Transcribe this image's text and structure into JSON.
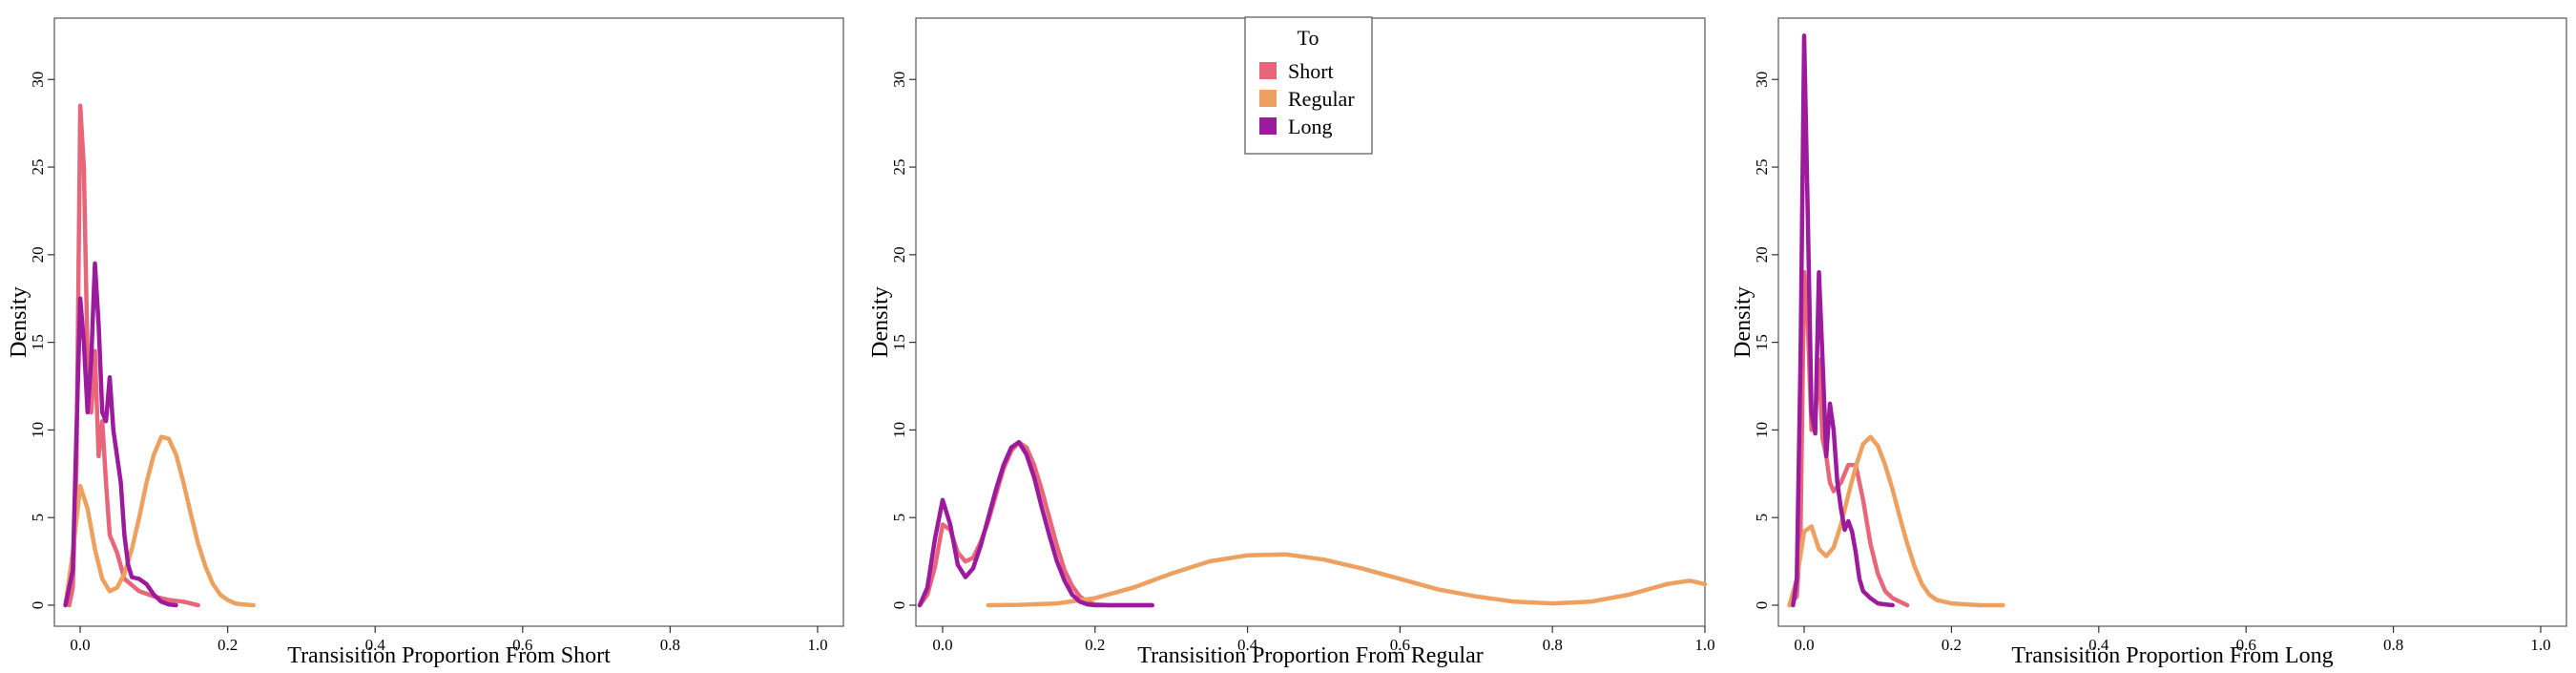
{
  "colors": {
    "Short": "#e8667a",
    "Regular": "#eda05f",
    "Long": "#9b1b9c"
  },
  "legend": {
    "title": "To",
    "entries": [
      "Short",
      "Regular",
      "Long"
    ]
  },
  "chart_data": [
    {
      "type": "line",
      "xlabel": "Transisition Proportion From Short",
      "ylabel": "Density",
      "xlim": [
        -0.035,
        1.035
      ],
      "ylim": [
        -1.2,
        33.5
      ],
      "xticks": [
        0.0,
        0.2,
        0.4,
        0.6,
        0.8,
        1.0
      ],
      "yticks": [
        0,
        5,
        10,
        15,
        20,
        25,
        30
      ],
      "series": [
        {
          "name": "Short",
          "x": [
            -0.015,
            -0.01,
            -0.005,
            0,
            0.005,
            0.01,
            0.015,
            0.02,
            0.025,
            0.03,
            0.035,
            0.04,
            0.05,
            0.06,
            0.08,
            0.1,
            0.12,
            0.14,
            0.16
          ],
          "y": [
            0,
            1,
            8,
            28.5,
            25,
            14,
            11,
            14.5,
            8.5,
            10.5,
            7,
            4,
            3,
            1.5,
            0.8,
            0.5,
            0.3,
            0.2,
            0
          ]
        },
        {
          "name": "Regular",
          "x": [
            -0.02,
            -0.01,
            0,
            0.01,
            0.02,
            0.03,
            0.04,
            0.05,
            0.06,
            0.07,
            0.08,
            0.09,
            0.1,
            0.11,
            0.12,
            0.13,
            0.14,
            0.15,
            0.16,
            0.17,
            0.18,
            0.19,
            0.2,
            0.21,
            0.22,
            0.235
          ],
          "y": [
            0,
            3,
            6.8,
            5.5,
            3.2,
            1.5,
            0.8,
            1,
            1.8,
            3.2,
            5,
            7,
            8.6,
            9.6,
            9.5,
            8.6,
            7,
            5.2,
            3.5,
            2.2,
            1.2,
            0.6,
            0.3,
            0.1,
            0.05,
            0
          ]
        },
        {
          "name": "Long",
          "x": [
            -0.02,
            -0.01,
            -0.005,
            0,
            0.005,
            0.01,
            0.015,
            0.02,
            0.025,
            0.03,
            0.035,
            0.04,
            0.045,
            0.05,
            0.055,
            0.06,
            0.065,
            0.07,
            0.08,
            0.09,
            0.1,
            0.11,
            0.12,
            0.13
          ],
          "y": [
            0,
            2,
            10,
            17.5,
            15,
            11,
            14,
            19.5,
            16,
            11,
            10.5,
            13,
            10,
            8.5,
            7,
            4,
            2.3,
            1.6,
            1.5,
            1.2,
            0.6,
            0.2,
            0.05,
            0
          ]
        }
      ]
    },
    {
      "type": "line",
      "xlabel": "Transisition Proportion From Regular",
      "ylabel": "Density",
      "xlim": [
        -0.035,
        1.0
      ],
      "ylim": [
        -1.2,
        33.5
      ],
      "xticks": [
        0.0,
        0.2,
        0.4,
        0.6,
        0.8,
        1.0
      ],
      "yticks": [
        0,
        5,
        10,
        15,
        20,
        25,
        30
      ],
      "series": [
        {
          "name": "Short",
          "x": [
            -0.03,
            -0.02,
            -0.01,
            0,
            0.01,
            0.02,
            0.03,
            0.04,
            0.05,
            0.06,
            0.07,
            0.08,
            0.09,
            0.1,
            0.11,
            0.12,
            0.13,
            0.14,
            0.15,
            0.16,
            0.17,
            0.18,
            0.19,
            0.2,
            0.22,
            0.24,
            0.26,
            0.275
          ],
          "y": [
            0,
            0.6,
            2.2,
            4.6,
            4.3,
            3,
            2.5,
            2.7,
            3.6,
            4.8,
            6.3,
            7.8,
            8.8,
            9.3,
            9,
            8,
            6.6,
            5,
            3.4,
            2,
            1.1,
            0.5,
            0.2,
            0.05,
            0,
            0,
            0,
            0
          ]
        },
        {
          "name": "Regular",
          "x": [
            0.06,
            0.1,
            0.15,
            0.2,
            0.25,
            0.3,
            0.35,
            0.4,
            0.45,
            0.5,
            0.55,
            0.6,
            0.65,
            0.7,
            0.75,
            0.8,
            0.85,
            0.9,
            0.95,
            0.98,
            1.0
          ],
          "y": [
            0,
            0.02,
            0.1,
            0.4,
            1,
            1.8,
            2.5,
            2.85,
            2.9,
            2.6,
            2.1,
            1.5,
            0.9,
            0.5,
            0.2,
            0.1,
            0.2,
            0.6,
            1.2,
            1.4,
            1.2
          ]
        },
        {
          "name": "Long",
          "x": [
            -0.03,
            -0.02,
            -0.01,
            0,
            0.01,
            0.02,
            0.03,
            0.04,
            0.05,
            0.06,
            0.07,
            0.08,
            0.09,
            0.1,
            0.11,
            0.12,
            0.13,
            0.14,
            0.15,
            0.16,
            0.17,
            0.18,
            0.19,
            0.2,
            0.22,
            0.24,
            0.26,
            0.275
          ],
          "y": [
            0,
            1,
            3.8,
            6,
            4.6,
            2.3,
            1.6,
            2.1,
            3.4,
            5,
            6.6,
            8,
            9,
            9.3,
            8.6,
            7.3,
            5.6,
            4,
            2.5,
            1.4,
            0.6,
            0.2,
            0.05,
            0,
            0,
            0,
            0,
            0
          ]
        }
      ]
    },
    {
      "type": "line",
      "xlabel": "Transisition Proportion From Long",
      "ylabel": "Density",
      "xlim": [
        -0.035,
        1.035
      ],
      "ylim": [
        -1.2,
        33.5
      ],
      "xticks": [
        0.0,
        0.2,
        0.4,
        0.6,
        0.8,
        1.0
      ],
      "yticks": [
        0,
        5,
        10,
        15,
        20,
        25,
        30
      ],
      "series": [
        {
          "name": "Short",
          "x": [
            -0.02,
            -0.01,
            -0.005,
            0,
            0.005,
            0.01,
            0.015,
            0.02,
            0.025,
            0.03,
            0.035,
            0.04,
            0.05,
            0.06,
            0.07,
            0.08,
            0.09,
            0.1,
            0.11,
            0.12,
            0.13,
            0.14
          ],
          "y": [
            0,
            0.5,
            4,
            19,
            16,
            10,
            10.5,
            14,
            9.5,
            8.5,
            7,
            6.5,
            7,
            8,
            8,
            6,
            3.5,
            1.8,
            0.8,
            0.4,
            0.2,
            0
          ]
        },
        {
          "name": "Regular",
          "x": [
            -0.02,
            -0.01,
            0,
            0.01,
            0.02,
            0.03,
            0.04,
            0.05,
            0.06,
            0.07,
            0.08,
            0.09,
            0.1,
            0.11,
            0.12,
            0.13,
            0.14,
            0.15,
            0.16,
            0.17,
            0.18,
            0.2,
            0.22,
            0.24,
            0.27
          ],
          "y": [
            0,
            1.5,
            4.2,
            4.5,
            3.2,
            2.8,
            3.3,
            4.6,
            6.3,
            7.9,
            9.2,
            9.6,
            9.1,
            8,
            6.6,
            5,
            3.5,
            2.2,
            1.2,
            0.6,
            0.3,
            0.1,
            0.05,
            0,
            0
          ]
        },
        {
          "name": "Long",
          "x": [
            -0.015,
            -0.01,
            -0.005,
            0,
            0.005,
            0.01,
            0.015,
            0.02,
            0.025,
            0.03,
            0.035,
            0.04,
            0.045,
            0.05,
            0.055,
            0.06,
            0.065,
            0.07,
            0.075,
            0.08,
            0.09,
            0.1,
            0.11,
            0.12
          ],
          "y": [
            0,
            1.5,
            14,
            32.5,
            22,
            11,
            9.8,
            19,
            14,
            8.5,
            11.5,
            10,
            7,
            5.5,
            4.3,
            4.8,
            4.2,
            3,
            1.5,
            0.8,
            0.4,
            0.1,
            0.05,
            0
          ]
        }
      ]
    }
  ]
}
